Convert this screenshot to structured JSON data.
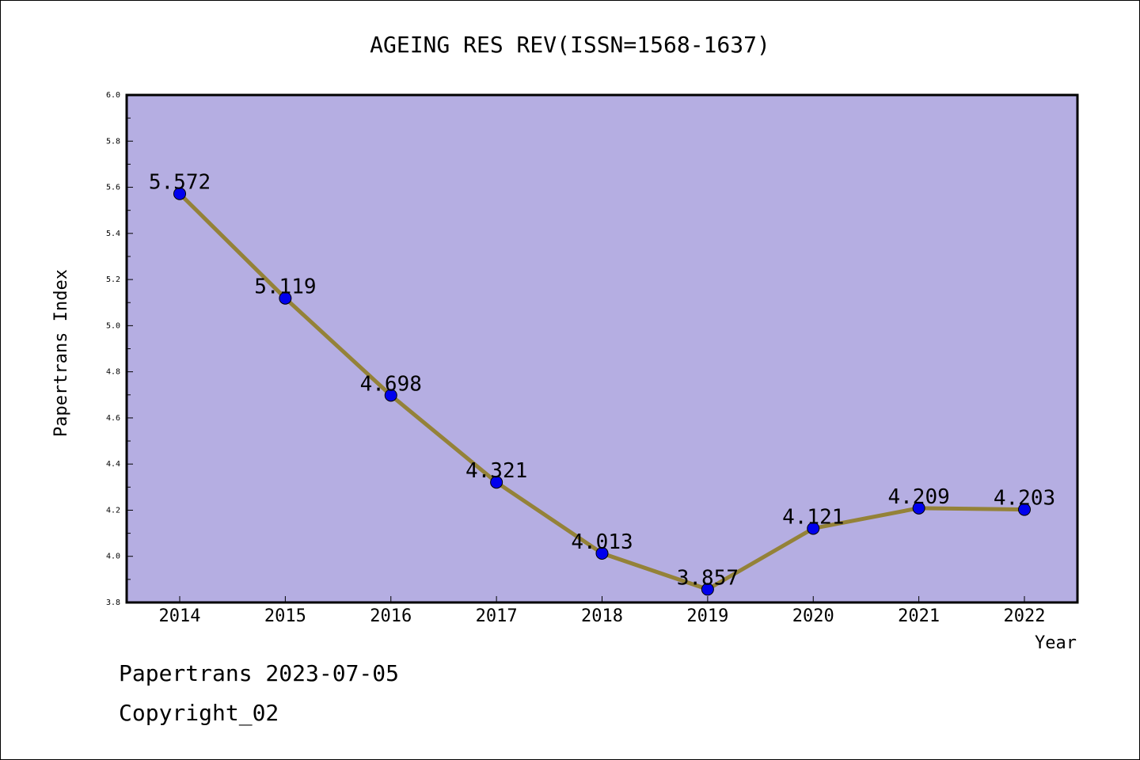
{
  "footer": {
    "line1": "Papertrans 2023-07-05",
    "line2": "Copyright_02"
  },
  "chart_data": {
    "type": "line",
    "title": "AGEING RES REV(ISSN=1568-1637)",
    "xlabel": "Year",
    "ylabel": "Papertrans Index",
    "categories": [
      "2014",
      "2015",
      "2016",
      "2017",
      "2018",
      "2019",
      "2020",
      "2021",
      "2022"
    ],
    "values": [
      5.572,
      5.119,
      4.698,
      4.321,
      4.013,
      3.857,
      4.121,
      4.209,
      4.203
    ],
    "value_labels": [
      "5.572",
      "5.119",
      "4.698",
      "4.321",
      "4.013",
      "3.857",
      "4.121",
      "4.209",
      "4.203"
    ],
    "ylim": [
      3.8,
      6.0
    ],
    "yticks": [
      "3.8",
      "4.0",
      "4.2",
      "4.4",
      "4.6",
      "4.8",
      "5.0",
      "5.2",
      "5.4",
      "5.6",
      "5.8",
      "6.0"
    ],
    "grid": false,
    "colors": {
      "plot_background": "#b5aee2",
      "line": "#948238",
      "marker": "#0000ee"
    }
  }
}
